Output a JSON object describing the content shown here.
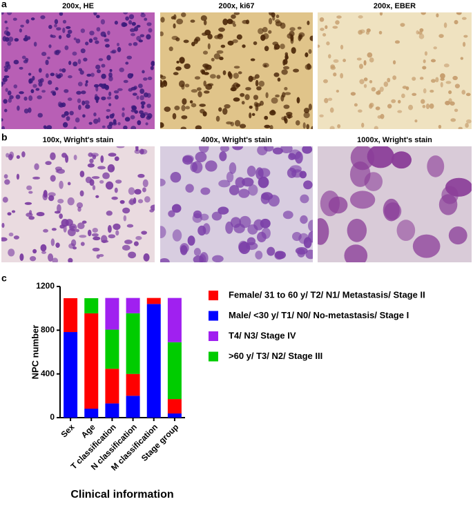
{
  "panels": [
    {
      "label": "a",
      "titles": [
        "200x, HE",
        "200x, ki67",
        "200x, EBER"
      ]
    },
    {
      "label": "b",
      "titles": [
        "100x, Wright's stain",
        "400x, Wright's stain",
        "1000x, Wright's stain"
      ]
    },
    {
      "label": "c"
    }
  ],
  "chart_data": {
    "type": "stacked-bar",
    "xlabel": "Clinical information",
    "ylabel": "NPC number",
    "categories": [
      "Sex",
      "Age",
      "T classification",
      "N classification",
      "M classification",
      "Stage group"
    ],
    "series": [
      {
        "name": "Female/ 31 to 60 y/ T2/ N1/ Metastasis/ Stage II",
        "color": "#ff0000",
        "values": [
          310,
          872,
          317,
          200,
          55,
          132
        ]
      },
      {
        "name": "Male/ <30 y/ T1/ N0/ No-metastasis/ Stage I",
        "color": "#0000ff",
        "values": [
          783,
          82,
          130,
          200,
          1040,
          38
        ]
      },
      {
        "name": "T4/ N3/ Stage IV",
        "color": "#a020f0",
        "values": [
          0,
          0,
          290,
          140,
          0,
          405
        ]
      },
      {
        "name": ">60 y/ T3/ N2/ Stage III",
        "color": "#00cc00",
        "values": [
          0,
          139,
          358,
          555,
          0,
          520
        ]
      }
    ],
    "stack_order": [
      1,
      0,
      3,
      2
    ],
    "ylim": [
      0,
      1200
    ],
    "yticks": [
      0,
      400,
      800,
      1200
    ]
  }
}
